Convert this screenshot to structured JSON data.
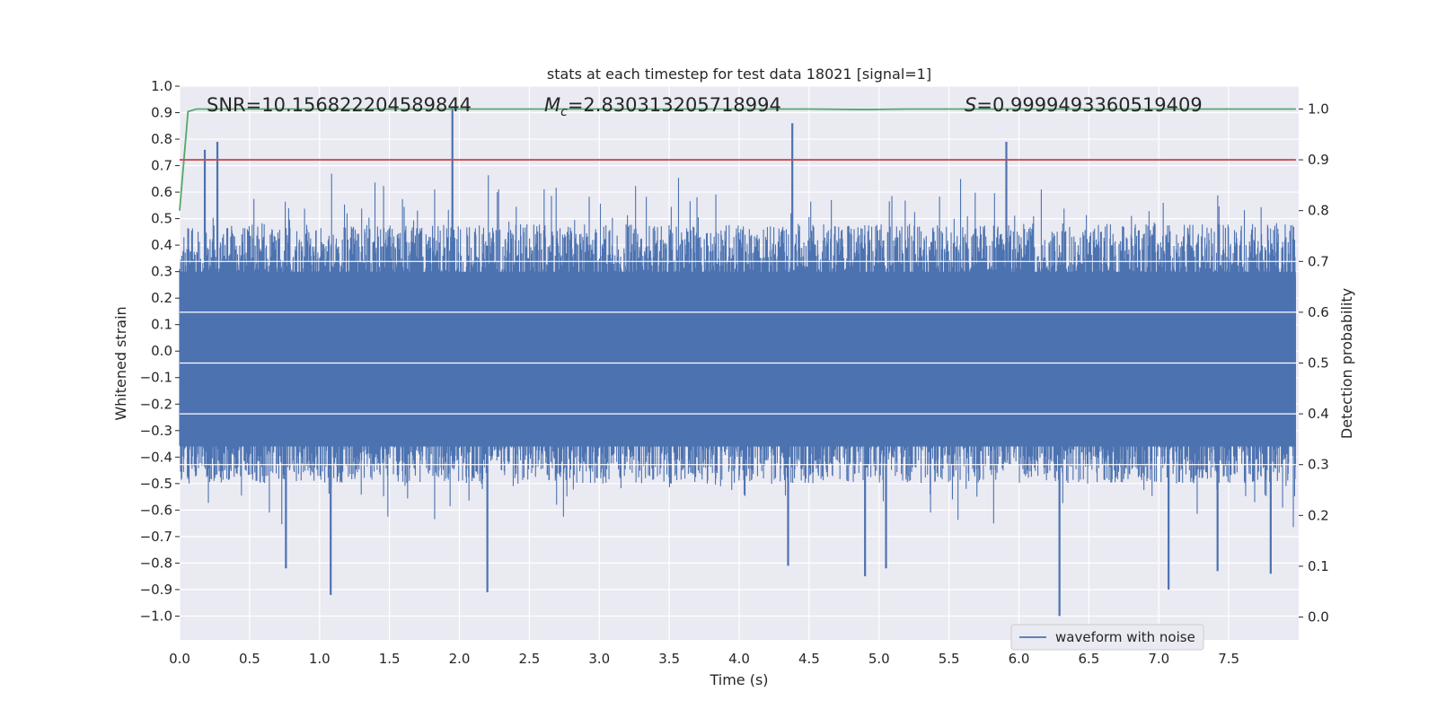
{
  "chart_data": {
    "type": "line",
    "title": "stats at each timestep for test data 18021 [signal=1]",
    "xlabel": "Time (s)",
    "ylabel": "Whitened strain",
    "y2label": "Detection probability",
    "xlim": [
      0,
      8.0
    ],
    "ylim": [
      -1.09,
      1.0
    ],
    "y2lim": [
      -0.045,
      1.045
    ],
    "xticks": [
      "0.0",
      "0.5",
      "1.0",
      "1.5",
      "2.0",
      "2.5",
      "3.0",
      "3.5",
      "4.0",
      "4.5",
      "5.0",
      "5.5",
      "6.0",
      "6.5",
      "7.0",
      "7.5"
    ],
    "xtick_values": [
      0,
      0.5,
      1,
      1.5,
      2,
      2.5,
      3,
      3.5,
      4,
      4.5,
      5,
      5.5,
      6,
      6.5,
      7,
      7.5
    ],
    "yticks": [
      "1.0",
      "0.9",
      "0.8",
      "0.7",
      "0.6",
      "0.5",
      "0.4",
      "0.3",
      "0.2",
      "0.1",
      "0.0",
      "−0.1",
      "−0.2",
      "−0.3",
      "−0.4",
      "−0.5",
      "−0.6",
      "−0.7",
      "−0.8",
      "−0.9",
      "−1.0"
    ],
    "ytick_values": [
      1.0,
      0.9,
      0.8,
      0.7,
      0.6,
      0.5,
      0.4,
      0.3,
      0.2,
      0.1,
      0.0,
      -0.1,
      -0.2,
      -0.3,
      -0.4,
      -0.5,
      -0.6,
      -0.7,
      -0.8,
      -0.9,
      -1.0
    ],
    "y2ticks": [
      "1.0",
      "0.9",
      "0.8",
      "0.7",
      "0.6",
      "0.5",
      "0.4",
      "0.3",
      "0.2",
      "0.1",
      "0.0"
    ],
    "y2tick_values": [
      1.0,
      0.9,
      0.8,
      0.7,
      0.6,
      0.5,
      0.4,
      0.3,
      0.2,
      0.1,
      0.0
    ],
    "series": [
      {
        "name": "waveform with noise",
        "axis": "left",
        "color": "#4c72b0",
        "kind": "noise",
        "peak_spikes": [
          {
            "x": 1.95,
            "y": 0.92
          },
          {
            "x": 4.38,
            "y": 0.86
          },
          {
            "x": 5.91,
            "y": 0.79
          },
          {
            "x": 0.27,
            "y": 0.79
          },
          {
            "x": 0.18,
            "y": 0.76
          },
          {
            "x": 6.29,
            "y": -1.0
          },
          {
            "x": 1.08,
            "y": -0.92
          },
          {
            "x": 2.2,
            "y": -0.91
          },
          {
            "x": 7.07,
            "y": -0.9
          },
          {
            "x": 4.9,
            "y": -0.85
          },
          {
            "x": 7.8,
            "y": -0.84
          },
          {
            "x": 7.42,
            "y": -0.83
          },
          {
            "x": 5.05,
            "y": -0.82
          },
          {
            "x": 0.76,
            "y": -0.82
          },
          {
            "x": 4.35,
            "y": -0.81
          }
        ]
      },
      {
        "name": "detection probability",
        "axis": "right",
        "color": "#55a868",
        "x": [
          0.0,
          0.06,
          0.12,
          1.0,
          3.0,
          4.5,
          4.9,
          5.2,
          7.98
        ],
        "y": [
          0.8,
          0.995,
          1.0,
          1.0,
          1.0,
          1.0,
          0.999,
          1.0,
          1.0
        ]
      },
      {
        "name": "threshold",
        "axis": "right",
        "color": "#c44e52",
        "x": [
          0.0,
          7.98
        ],
        "y": [
          0.9,
          0.9
        ]
      }
    ],
    "annotations": [
      {
        "text": "SNR=10.156822204589844"
      },
      {
        "text_main": "M",
        "text_sub": "c",
        "text_rest": "=2.830313205718994"
      },
      {
        "text_main": "S",
        "text_rest": "=0.9999493360519409"
      }
    ],
    "legend": {
      "entries": [
        "waveform with noise"
      ],
      "position": "lower-right"
    },
    "grid": true
  },
  "colors": {
    "plot_background": "#eaeaf2",
    "grid": "#ffffff",
    "waveform": "#4c72b0",
    "probability": "#55a868",
    "threshold": "#c44e52"
  }
}
